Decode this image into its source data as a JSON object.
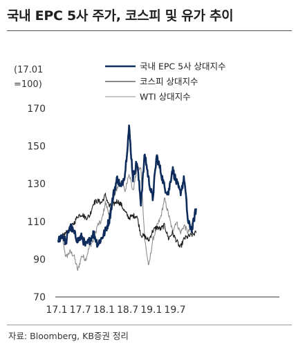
{
  "title": "국내 EPC 5사 주가, 코스피 및 유가 추이",
  "unit_line1": "(17.01",
  "unit_line2": "=100)",
  "source": "자료: Bloomberg, KB증권 정리",
  "chart_data": {
    "type": "line",
    "ylim": [
      70,
      170
    ],
    "y_ticks": [
      "170",
      "150",
      "130",
      "110",
      "90",
      "70"
    ],
    "x_ticks": [
      "17.1",
      "17.7",
      "18.1",
      "18.7",
      "19.1",
      "19.7"
    ],
    "xlim": [
      "2017-01",
      "2019-12"
    ],
    "legend_position": "top-right",
    "series": [
      {
        "name": "국내 EPC 5사 상대지수",
        "color": "#0d2c5c",
        "width": 2.6,
        "points": [
          [
            "2017-01",
            100
          ],
          [
            "2017-02",
            103
          ],
          [
            "2017-03",
            99
          ],
          [
            "2017-04",
            108
          ],
          [
            "2017-05",
            104
          ],
          [
            "2017-06",
            100
          ],
          [
            "2017-07",
            102
          ],
          [
            "2017-08",
            97
          ],
          [
            "2017-09",
            100
          ],
          [
            "2017-10",
            104
          ],
          [
            "2017-11",
            98
          ],
          [
            "2017-12",
            101
          ],
          [
            "2018-01",
            105
          ],
          [
            "2018-02",
            111
          ],
          [
            "2018-03",
            124
          ],
          [
            "2018-04",
            133
          ],
          [
            "2018-05",
            128
          ],
          [
            "2018-06",
            136
          ],
          [
            "2018-07",
            160
          ],
          [
            "2018-08",
            133
          ],
          [
            "2018-09",
            142
          ],
          [
            "2018-10",
            120
          ],
          [
            "2018-11",
            146
          ],
          [
            "2018-12",
            132
          ],
          [
            "2019-01",
            122
          ],
          [
            "2019-02",
            145
          ],
          [
            "2019-03",
            137
          ],
          [
            "2019-04",
            128
          ],
          [
            "2019-05",
            125
          ],
          [
            "2019-06",
            138
          ],
          [
            "2019-07",
            131
          ],
          [
            "2019-08",
            125
          ],
          [
            "2019-09",
            133
          ],
          [
            "2019-10",
            109
          ],
          [
            "2019-11",
            106
          ],
          [
            "2019-12",
            117
          ]
        ]
      },
      {
        "name": "코스피 상대지수",
        "color": "#1a1a1a",
        "width": 1.1,
        "points": [
          [
            "2017-01",
            100
          ],
          [
            "2017-02",
            102
          ],
          [
            "2017-03",
            104
          ],
          [
            "2017-04",
            106
          ],
          [
            "2017-05",
            109
          ],
          [
            "2017-06",
            113
          ],
          [
            "2017-07",
            114
          ],
          [
            "2017-08",
            112
          ],
          [
            "2017-09",
            113
          ],
          [
            "2017-10",
            120
          ],
          [
            "2017-11",
            121
          ],
          [
            "2017-12",
            120
          ],
          [
            "2018-01",
            124
          ],
          [
            "2018-02",
            118
          ],
          [
            "2018-03",
            119
          ],
          [
            "2018-04",
            121
          ],
          [
            "2018-05",
            119
          ],
          [
            "2018-06",
            115
          ],
          [
            "2018-07",
            112
          ],
          [
            "2018-08",
            113
          ],
          [
            "2018-09",
            113
          ],
          [
            "2018-10",
            103
          ],
          [
            "2018-11",
            102
          ],
          [
            "2018-12",
            100
          ],
          [
            "2019-01",
            105
          ],
          [
            "2019-02",
            107
          ],
          [
            "2019-03",
            106
          ],
          [
            "2019-04",
            108
          ],
          [
            "2019-05",
            101
          ],
          [
            "2019-06",
            104
          ],
          [
            "2019-07",
            100
          ],
          [
            "2019-08",
            96
          ],
          [
            "2019-09",
            101
          ],
          [
            "2019-10",
            102
          ],
          [
            "2019-11",
            103
          ],
          [
            "2019-12",
            104
          ]
        ]
      },
      {
        "name": "WTI 상대지수",
        "color": "#8c8c8c",
        "width": 1.1,
        "points": [
          [
            "2017-01",
            100
          ],
          [
            "2017-02",
            102
          ],
          [
            "2017-03",
            91
          ],
          [
            "2017-04",
            94
          ],
          [
            "2017-05",
            92
          ],
          [
            "2017-06",
            84
          ],
          [
            "2017-07",
            92
          ],
          [
            "2017-08",
            90
          ],
          [
            "2017-09",
            97
          ],
          [
            "2017-10",
            100
          ],
          [
            "2017-11",
            108
          ],
          [
            "2017-12",
            110
          ],
          [
            "2018-01",
            120
          ],
          [
            "2018-02",
            114
          ],
          [
            "2018-03",
            121
          ],
          [
            "2018-04",
            128
          ],
          [
            "2018-05",
            132
          ],
          [
            "2018-06",
            126
          ],
          [
            "2018-07",
            136
          ],
          [
            "2018-08",
            126
          ],
          [
            "2018-09",
            138
          ],
          [
            "2018-10",
            138
          ],
          [
            "2018-11",
            100
          ],
          [
            "2018-12",
            86
          ],
          [
            "2019-01",
            100
          ],
          [
            "2019-02",
            107
          ],
          [
            "2019-03",
            112
          ],
          [
            "2019-04",
            122
          ],
          [
            "2019-05",
            114
          ],
          [
            "2019-06",
            105
          ],
          [
            "2019-07",
            110
          ],
          [
            "2019-08",
            104
          ],
          [
            "2019-09",
            108
          ],
          [
            "2019-10",
            104
          ],
          [
            "2019-11",
            109
          ],
          [
            "2019-12",
            114
          ]
        ]
      }
    ]
  }
}
